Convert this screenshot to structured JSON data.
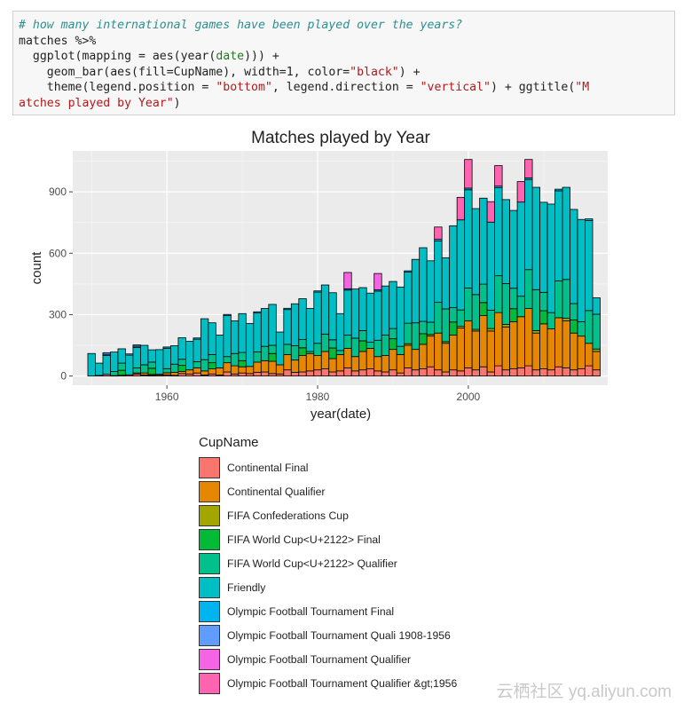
{
  "code": {
    "lines": [
      [
        {
          "t": "# how many international games have been played over the years?",
          "c": "c-comment"
        }
      ],
      [
        {
          "t": "matches %>%",
          "c": ""
        }
      ],
      [
        {
          "t": "  ggplot(mapping = aes(year(",
          "c": ""
        },
        {
          "t": "date",
          "c": "c-kw"
        },
        {
          "t": "))) +",
          "c": ""
        }
      ],
      [
        {
          "t": "    geom_bar(aes(fill=CupName), width=1, color=",
          "c": ""
        },
        {
          "t": "\"black\"",
          "c": "c-str"
        },
        {
          "t": ") +",
          "c": ""
        }
      ],
      [
        {
          "t": "    theme(legend.position = ",
          "c": ""
        },
        {
          "t": "\"bottom\"",
          "c": "c-str"
        },
        {
          "t": ", legend.direction = ",
          "c": ""
        },
        {
          "t": "\"vertical\"",
          "c": "c-str"
        },
        {
          "t": ") + ggtitle(",
          "c": ""
        },
        {
          "t": "\"M",
          "c": "c-str"
        }
      ],
      [
        {
          "t": "atches played by Year\"",
          "c": "c-str"
        },
        {
          "t": ")",
          "c": ""
        }
      ]
    ]
  },
  "chart_data": {
    "type": "bar",
    "stacked": true,
    "title": "Matches played by Year",
    "xlabel": "year(date)",
    "ylabel": "count",
    "xlim": [
      1947.5,
      2018.5
    ],
    "ylim": [
      -45,
      1100
    ],
    "x_ticks": [
      1960,
      1980,
      2000
    ],
    "y_ticks": [
      0,
      300,
      600,
      900
    ],
    "legend_title": "CupName",
    "legend_position": "bottom",
    "grid": true,
    "bar_width": 1,
    "bar_outline": "black",
    "years": [
      1950,
      1951,
      1952,
      1953,
      1954,
      1955,
      1956,
      1957,
      1958,
      1959,
      1960,
      1961,
      1962,
      1963,
      1964,
      1965,
      1966,
      1967,
      1968,
      1969,
      1970,
      1971,
      1972,
      1973,
      1974,
      1975,
      1976,
      1977,
      1978,
      1979,
      1980,
      1981,
      1982,
      1983,
      1984,
      1985,
      1986,
      1987,
      1988,
      1989,
      1990,
      1991,
      1992,
      1993,
      1994,
      1995,
      1996,
      1997,
      1998,
      1999,
      2000,
      2001,
      2002,
      2003,
      2004,
      2005,
      2006,
      2007,
      2008,
      2009,
      2010,
      2011,
      2012,
      2013,
      2014,
      2015,
      2016,
      2017
    ],
    "series": [
      {
        "name": "Continental Final",
        "color": "#F8766D",
        "values": [
          0,
          3,
          8,
          2,
          4,
          6,
          10,
          5,
          3,
          4,
          6,
          3,
          12,
          10,
          15,
          5,
          10,
          5,
          20,
          10,
          15,
          12,
          18,
          20,
          12,
          10,
          30,
          18,
          20,
          25,
          30,
          35,
          20,
          25,
          40,
          25,
          30,
          35,
          25,
          20,
          30,
          15,
          40,
          30,
          35,
          45,
          30,
          20,
          30,
          25,
          40,
          30,
          45,
          20,
          50,
          30,
          35,
          40,
          50,
          30,
          35,
          30,
          45,
          40,
          30,
          35,
          50,
          30
        ]
      },
      {
        "name": "Continental Qualifier",
        "color": "#E58700",
        "values": [
          0,
          0,
          0,
          0,
          0,
          0,
          5,
          10,
          5,
          5,
          10,
          15,
          10,
          20,
          25,
          20,
          25,
          35,
          45,
          40,
          30,
          35,
          50,
          55,
          60,
          45,
          75,
          60,
          80,
          85,
          70,
          85,
          65,
          80,
          95,
          70,
          90,
          100,
          70,
          80,
          100,
          90,
          110,
          100,
          120,
          150,
          180,
          140,
          170,
          210,
          230,
          190,
          250,
          200,
          260,
          210,
          230,
          250,
          280,
          180,
          220,
          200,
          240,
          230,
          180,
          160,
          110,
          90
        ]
      },
      {
        "name": "FIFA Confederations Cup",
        "color": "#A3A500",
        "values": [
          0,
          0,
          0,
          0,
          0,
          0,
          0,
          0,
          0,
          0,
          0,
          0,
          0,
          0,
          0,
          0,
          0,
          0,
          0,
          0,
          0,
          0,
          0,
          0,
          0,
          0,
          0,
          0,
          0,
          0,
          0,
          0,
          0,
          0,
          0,
          0,
          0,
          0,
          0,
          0,
          0,
          0,
          8,
          0,
          0,
          8,
          0,
          8,
          0,
          8,
          0,
          8,
          0,
          12,
          0,
          12,
          0,
          0,
          0,
          12,
          0,
          0,
          0,
          12,
          0,
          0,
          0,
          12
        ]
      },
      {
        "name": "FIFA World Cup™ Final",
        "color": "#00BA38",
        "values": [
          0,
          0,
          0,
          0,
          24,
          0,
          0,
          0,
          30,
          0,
          0,
          0,
          30,
          0,
          0,
          0,
          30,
          0,
          0,
          0,
          30,
          0,
          0,
          0,
          38,
          0,
          0,
          0,
          38,
          0,
          0,
          0,
          52,
          0,
          0,
          0,
          52,
          0,
          0,
          0,
          52,
          0,
          0,
          0,
          52,
          0,
          0,
          0,
          64,
          0,
          0,
          0,
          64,
          0,
          0,
          0,
          64,
          0,
          0,
          0,
          64,
          0,
          0,
          0,
          64,
          0,
          0,
          0
        ]
      },
      {
        "name": "FIFA World Cup™ Qualifier",
        "color": "#00C08B",
        "values": [
          0,
          0,
          0,
          20,
          35,
          0,
          25,
          40,
          30,
          0,
          20,
          40,
          30,
          0,
          30,
          55,
          40,
          0,
          30,
          60,
          40,
          0,
          50,
          70,
          40,
          0,
          50,
          70,
          40,
          10,
          60,
          85,
          40,
          20,
          65,
          90,
          50,
          30,
          80,
          100,
          50,
          40,
          100,
          130,
          60,
          60,
          150,
          160,
          70,
          80,
          160,
          170,
          90,
          90,
          180,
          200,
          100,
          100,
          190,
          200,
          90,
          80,
          180,
          190,
          80,
          70,
          160,
          170
        ]
      },
      {
        "name": "Friendly",
        "color": "#00BFC4",
        "values": [
          110,
          60,
          92,
          95,
          70,
          96,
          100,
          95,
          60,
          120,
          100,
          90,
          105,
          140,
          110,
          200,
          155,
          160,
          200,
          160,
          190,
          210,
          190,
          185,
          200,
          160,
          170,
          205,
          200,
          210,
          250,
          240,
          230,
          180,
          220,
          240,
          210,
          240,
          240,
          240,
          230,
          290,
          250,
          310,
          360,
          300,
          300,
          250,
          400,
          440,
          480,
          420,
          420,
          430,
          430,
          410,
          380,
          460,
          440,
          500,
          440,
          530,
          440,
          450,
          460,
          500,
          440,
          80
        ]
      },
      {
        "name": "Olympic Football Tournament Final",
        "color": "#00B4F0",
        "values": [
          0,
          0,
          6,
          0,
          0,
          0,
          6,
          0,
          0,
          0,
          6,
          0,
          0,
          0,
          6,
          0,
          0,
          0,
          6,
          0,
          0,
          0,
          6,
          0,
          0,
          0,
          6,
          0,
          0,
          0,
          6,
          0,
          0,
          0,
          6,
          0,
          0,
          0,
          6,
          0,
          0,
          0,
          6,
          0,
          0,
          0,
          8,
          0,
          0,
          0,
          8,
          0,
          0,
          0,
          8,
          0,
          0,
          0,
          8,
          0,
          0,
          0,
          8,
          0,
          0,
          0,
          8,
          0
        ]
      },
      {
        "name": "Olympic Football Tournament Quali 1908-1956",
        "color": "#619CFF",
        "values": [
          0,
          0,
          8,
          0,
          0,
          6,
          6,
          0,
          0,
          0,
          0,
          0,
          0,
          0,
          0,
          0,
          0,
          0,
          0,
          0,
          0,
          0,
          0,
          0,
          0,
          0,
          0,
          0,
          0,
          0,
          0,
          0,
          0,
          0,
          0,
          0,
          0,
          0,
          0,
          0,
          0,
          0,
          0,
          0,
          0,
          0,
          0,
          0,
          0,
          0,
          0,
          0,
          0,
          0,
          0,
          0,
          0,
          0,
          0,
          0,
          0,
          0,
          0,
          0,
          0,
          0,
          0,
          0
        ]
      },
      {
        "name": "Olympic Football Tournament Qualifier",
        "color": "#F564E3",
        "values": [
          0,
          0,
          0,
          0,
          0,
          0,
          0,
          0,
          0,
          0,
          0,
          0,
          0,
          0,
          0,
          0,
          0,
          0,
          0,
          0,
          0,
          0,
          0,
          0,
          0,
          0,
          0,
          0,
          0,
          0,
          0,
          0,
          0,
          0,
          80,
          0,
          0,
          0,
          80,
          0,
          0,
          0,
          0,
          0,
          0,
          0,
          0,
          0,
          0,
          0,
          0,
          0,
          0,
          0,
          0,
          0,
          0,
          0,
          0,
          0,
          0,
          0,
          0,
          0,
          0,
          0,
          0,
          0
        ]
      },
      {
        "name": "Olympic Football Tournament Qualifier >1956",
        "color": "#FF64B0",
        "values": [
          0,
          0,
          0,
          0,
          0,
          0,
          0,
          0,
          0,
          0,
          0,
          0,
          0,
          0,
          0,
          0,
          0,
          0,
          0,
          0,
          0,
          0,
          0,
          0,
          0,
          0,
          0,
          0,
          0,
          0,
          0,
          0,
          0,
          0,
          0,
          0,
          0,
          0,
          0,
          0,
          0,
          0,
          0,
          0,
          0,
          0,
          60,
          0,
          0,
          110,
          140,
          0,
          0,
          100,
          100,
          0,
          0,
          100,
          90,
          0,
          0,
          0,
          0,
          0,
          0,
          0,
          0,
          0
        ]
      }
    ]
  },
  "legend": {
    "items": [
      "Continental Final",
      "Continental Qualifier",
      "FIFA Confederations Cup",
      "FIFA World Cup<U+2122> Final",
      "FIFA World Cup<U+2122> Qualifier",
      "Friendly",
      "Olympic Football Tournament Final",
      "Olympic Football Tournament Quali 1908-1956",
      "Olympic Football Tournament Qualifier",
      "Olympic Football Tournament Qualifier &gt;1956"
    ]
  },
  "watermark": "云栖社区 yq.aliyun.com"
}
